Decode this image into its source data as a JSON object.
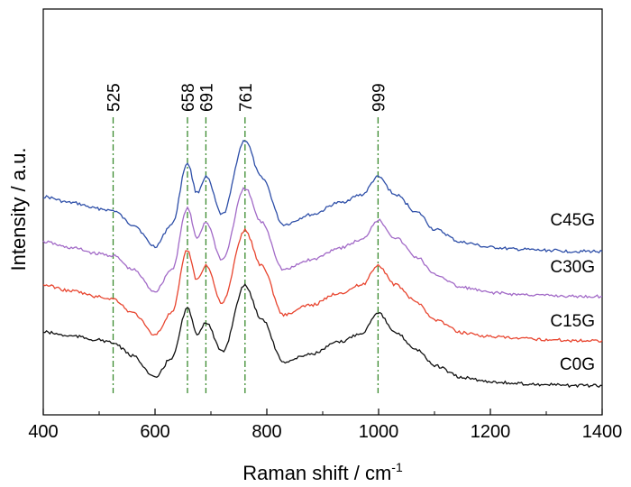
{
  "chart_data": {
    "type": "line",
    "xlabel": "Raman shift / cm",
    "xlabel_superscript": "-1",
    "ylabel": "Intensity / a.u.",
    "xlim": [
      400,
      1400
    ],
    "xticks": [
      "400",
      "600",
      "800",
      "1000",
      "1200",
      "1400"
    ],
    "grid": false,
    "legend": "inline-right",
    "peak_markers": [
      {
        "x": 525,
        "label": "525"
      },
      {
        "x": 658,
        "label": "658"
      },
      {
        "x": 691,
        "label": "691"
      },
      {
        "x": 761,
        "label": "761"
      },
      {
        "x": 999,
        "label": "999"
      }
    ],
    "series": [
      {
        "name": "C45G",
        "color": "#2e4fa8",
        "offset": 3,
        "x": [
          400,
          450,
          500,
          525,
          560,
          600,
          630,
          658,
          675,
          691,
          720,
          761,
          790,
          830,
          880,
          930,
          970,
          999,
          1030,
          1070,
          1100,
          1150,
          1200,
          1250,
          1300,
          1350,
          1400
        ],
        "y": [
          0.58,
          0.52,
          0.46,
          0.44,
          0.3,
          0.08,
          0.3,
          0.92,
          0.62,
          0.78,
          0.4,
          1.15,
          0.78,
          0.3,
          0.4,
          0.52,
          0.6,
          0.78,
          0.6,
          0.42,
          0.25,
          0.12,
          0.07,
          0.05,
          0.04,
          0.03,
          0.03
        ]
      },
      {
        "name": "C30G",
        "color": "#a26ac7",
        "offset": 2,
        "x": [
          400,
          450,
          500,
          525,
          560,
          600,
          630,
          658,
          675,
          691,
          720,
          761,
          790,
          830,
          880,
          930,
          970,
          999,
          1030,
          1070,
          1100,
          1150,
          1200,
          1250,
          1300,
          1350,
          1400
        ],
        "y": [
          0.58,
          0.52,
          0.46,
          0.44,
          0.3,
          0.08,
          0.3,
          0.92,
          0.62,
          0.78,
          0.4,
          1.12,
          0.78,
          0.3,
          0.4,
          0.52,
          0.6,
          0.8,
          0.62,
          0.42,
          0.25,
          0.12,
          0.07,
          0.05,
          0.04,
          0.03,
          0.03
        ]
      },
      {
        "name": "C15G",
        "color": "#e8452f",
        "offset": 1,
        "x": [
          400,
          450,
          500,
          525,
          560,
          600,
          630,
          658,
          675,
          691,
          720,
          761,
          790,
          830,
          880,
          930,
          970,
          999,
          1030,
          1070,
          1100,
          1150,
          1200,
          1250,
          1300,
          1350,
          1400
        ],
        "y": [
          0.6,
          0.54,
          0.48,
          0.46,
          0.32,
          0.1,
          0.32,
          0.95,
          0.65,
          0.8,
          0.42,
          1.15,
          0.8,
          0.3,
          0.4,
          0.52,
          0.6,
          0.8,
          0.6,
          0.42,
          0.25,
          0.12,
          0.08,
          0.06,
          0.05,
          0.04,
          0.04
        ]
      },
      {
        "name": "C0G",
        "color": "#111111",
        "offset": 0,
        "x": [
          400,
          450,
          500,
          525,
          560,
          600,
          630,
          658,
          675,
          691,
          720,
          761,
          790,
          830,
          880,
          930,
          970,
          999,
          1030,
          1070,
          1100,
          1150,
          1200,
          1250,
          1300,
          1350,
          1400
        ],
        "y": [
          0.58,
          0.54,
          0.5,
          0.47,
          0.34,
          0.12,
          0.32,
          0.82,
          0.56,
          0.68,
          0.38,
          1.05,
          0.72,
          0.28,
          0.36,
          0.48,
          0.57,
          0.78,
          0.57,
          0.4,
          0.24,
          0.12,
          0.08,
          0.06,
          0.05,
          0.04,
          0.04
        ]
      }
    ]
  }
}
